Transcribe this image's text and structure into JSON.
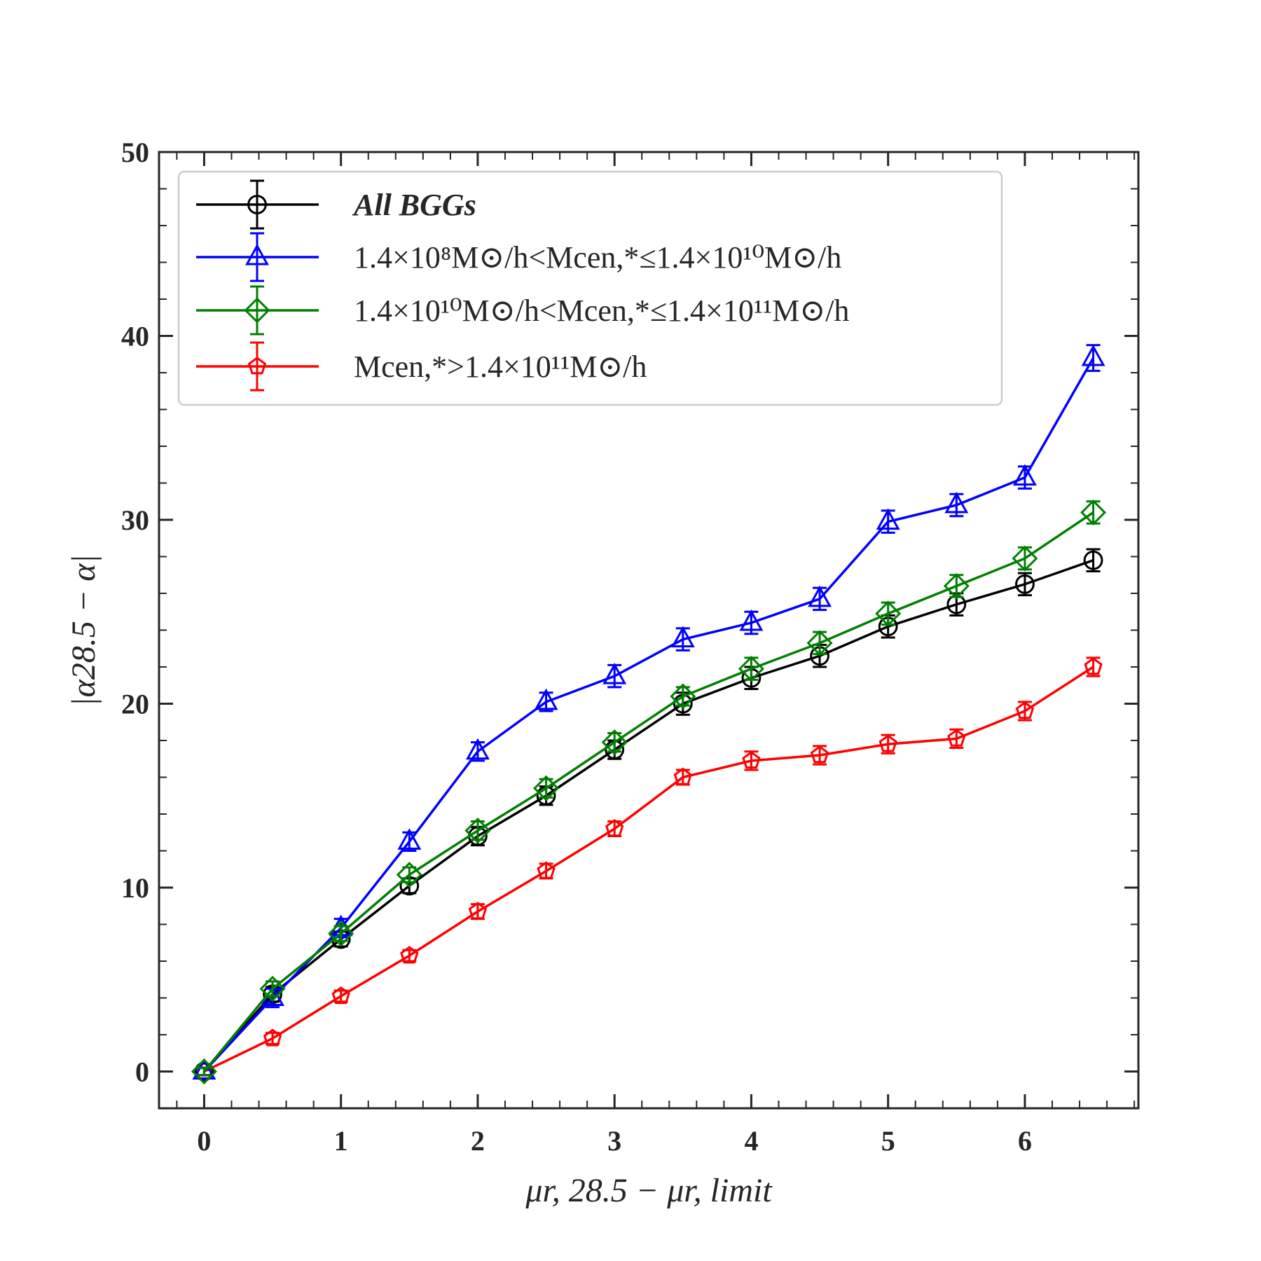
{
  "chart_data": {
    "type": "line",
    "title": "",
    "xlabel": "μr, 28.5 − μr, limit",
    "ylabel": "|α28.5 − α|",
    "xlim": [
      -0.33,
      6.83
    ],
    "ylim": [
      -2,
      50
    ],
    "x_ticks": [
      "0",
      "1",
      "2",
      "3",
      "4",
      "5",
      "6"
    ],
    "y_ticks": [
      "0",
      "10",
      "20",
      "30",
      "40",
      "50"
    ],
    "legend_position": "upper-left",
    "x": [
      0,
      0.5,
      1,
      1.5,
      2,
      2.5,
      3,
      3.5,
      4,
      4.5,
      5,
      5.5,
      6,
      6.5
    ],
    "series": [
      {
        "name": "All BGGs",
        "label_display": "All BGGs",
        "color": "#000000",
        "marker": "circle",
        "values": [
          0,
          4.2,
          7.2,
          10.1,
          12.8,
          15.0,
          17.5,
          20.0,
          21.4,
          22.6,
          24.2,
          25.4,
          26.5,
          27.8
        ],
        "errors": [
          0.2,
          0.4,
          0.4,
          0.4,
          0.5,
          0.5,
          0.5,
          0.6,
          0.6,
          0.6,
          0.6,
          0.6,
          0.6,
          0.6
        ]
      },
      {
        "name": "1.4×10^8 M⊙/h < M_cen,* ≤ 1.4×10^10 M⊙/h",
        "label_display": "1.4×10⁸M⊙/h<Mcen,*≤1.4×10¹⁰M⊙/h",
        "color": "#0000ff",
        "marker": "triangle",
        "values": [
          0,
          4.0,
          7.8,
          12.5,
          17.4,
          20.1,
          21.5,
          23.5,
          24.4,
          25.7,
          29.9,
          30.8,
          32.3,
          38.8
        ],
        "errors": [
          0.2,
          0.5,
          0.5,
          0.5,
          0.5,
          0.5,
          0.6,
          0.6,
          0.6,
          0.6,
          0.6,
          0.6,
          0.6,
          0.7
        ]
      },
      {
        "name": "1.4×10^10 M⊙/h < M_cen,* ≤ 1.4×10^11 M⊙/h",
        "label_display": "1.4×10¹⁰M⊙/h<Mcen,*≤1.4×10¹¹M⊙/h",
        "color": "#008000",
        "marker": "diamond",
        "values": [
          0,
          4.5,
          7.5,
          10.7,
          13.1,
          15.4,
          17.9,
          20.4,
          21.9,
          23.3,
          24.9,
          26.4,
          27.9,
          30.4
        ],
        "errors": [
          0.2,
          0.4,
          0.4,
          0.4,
          0.5,
          0.5,
          0.5,
          0.5,
          0.6,
          0.6,
          0.6,
          0.6,
          0.6,
          0.6
        ]
      },
      {
        "name": "M_cen,* > 1.4×10^11 M⊙/h",
        "label_display": "Mcen,*>1.4×10¹¹M⊙/h",
        "color": "#ff0000",
        "marker": "pentagon",
        "values": [
          0,
          1.8,
          4.1,
          6.3,
          8.7,
          10.9,
          13.2,
          16.0,
          16.9,
          17.2,
          17.8,
          18.1,
          19.6,
          22.0
        ],
        "errors": [
          0.2,
          0.3,
          0.3,
          0.3,
          0.4,
          0.4,
          0.4,
          0.4,
          0.5,
          0.5,
          0.5,
          0.5,
          0.5,
          0.5
        ]
      }
    ]
  }
}
